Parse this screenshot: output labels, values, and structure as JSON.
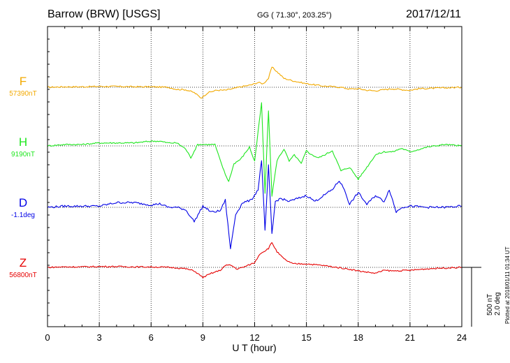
{
  "header": {
    "station": "Barrow (BRW)  [USGS]",
    "coords": "GG ( 71.30°, 203.25°)",
    "date": "2017/12/11"
  },
  "plotted_note": "Plotted at 2018/01/11 01:34 UT",
  "scale": {
    "line1": "500 nT",
    "line2": "2.0 deg"
  },
  "chart_data": {
    "type": "line",
    "xlabel": "U T (hour)",
    "xlim": [
      0,
      24
    ],
    "xticks": [
      0,
      3,
      6,
      9,
      12,
      15,
      18,
      21,
      24
    ],
    "scale_label": "500 nT / 2.0 deg",
    "series": [
      {
        "name": "F",
        "baseline_label": "57390nT",
        "color": "#f2a900",
        "unit": "nT",
        "x": [
          0,
          1,
          2,
          3,
          4,
          5,
          6,
          7,
          7.5,
          8,
          8.5,
          8.9,
          9.3,
          9.8,
          10.3,
          10.8,
          11.2,
          11.8,
          12.2,
          12.5,
          12.8,
          13.0,
          13.3,
          13.7,
          14.2,
          15,
          16,
          17,
          17.5,
          18,
          18.5,
          19,
          19.5,
          20,
          20.5,
          21,
          21.5,
          22,
          23,
          24
        ],
        "values": [
          0,
          4,
          4,
          7,
          7,
          4,
          4,
          0,
          -18,
          -20,
          -45,
          -90,
          -45,
          -25,
          -25,
          -10,
          4,
          20,
          40,
          30,
          75,
          170,
          130,
          75,
          55,
          30,
          10,
          0,
          -15,
          -12,
          -25,
          -30,
          -20,
          -12,
          -20,
          -25,
          -12,
          -10,
          -5,
          0
        ]
      },
      {
        "name": "H",
        "baseline_label": "9190nT",
        "color": "#1ee61e",
        "unit": "nT",
        "x": [
          0,
          1,
          2,
          3,
          4,
          5,
          6,
          6.5,
          7,
          7.5,
          8,
          8.3,
          8.7,
          9.2,
          9.7,
          10.0,
          10.3,
          10.5,
          10.8,
          11.2,
          11.7,
          12.0,
          12.2,
          12.4,
          12.6,
          12.8,
          13.0,
          13.3,
          13.7,
          14.0,
          14.3,
          14.7,
          15.0,
          15.3,
          15.7,
          16.0,
          16.5,
          17.0,
          17.5,
          18.0,
          18.5,
          19.0,
          19.5,
          20.0,
          20.5,
          21.0,
          22,
          23,
          24
        ],
        "values": [
          0,
          12,
          12,
          25,
          25,
          25,
          40,
          40,
          25,
          25,
          -25,
          -100,
          12,
          12,
          12,
          -120,
          -240,
          -300,
          -150,
          -110,
          -10,
          -130,
          120,
          360,
          -400,
          300,
          -420,
          -120,
          -25,
          -130,
          -75,
          -150,
          -40,
          -75,
          -100,
          -80,
          -40,
          -210,
          -180,
          -280,
          -180,
          -75,
          -50,
          -50,
          -20,
          -50,
          -10,
          12,
          0
        ]
      },
      {
        "name": "D",
        "baseline_label": "-1.1deg",
        "color": "#0000e6",
        "unit": "deg",
        "x": [
          0,
          1,
          2,
          3,
          4,
          5,
          6,
          6.5,
          7,
          7.5,
          8,
          8.5,
          9,
          9.5,
          10,
          10.3,
          10.6,
          10.9,
          11.3,
          11.8,
          12.2,
          12.4,
          12.6,
          12.8,
          13.0,
          13.2,
          13.5,
          14.0,
          14.5,
          15.0,
          15.5,
          16.0,
          16.5,
          16.9,
          17.2,
          17.5,
          18.0,
          18.5,
          19.0,
          19.5,
          19.8,
          20.2,
          20.5,
          21,
          22,
          23,
          24
        ],
        "values": [
          0,
          0.04,
          0.04,
          0.04,
          0.16,
          0.16,
          0.08,
          0.12,
          0,
          0,
          -0.08,
          -0.48,
          0.04,
          -0.16,
          -0.12,
          0.24,
          -1.4,
          -0.24,
          0.16,
          0.24,
          0.6,
          1.6,
          -0.8,
          1.4,
          -0.9,
          0.2,
          0.3,
          0.2,
          0.3,
          0.4,
          0.2,
          0.4,
          0.6,
          0.9,
          0.6,
          0.1,
          0.5,
          0.1,
          0.4,
          0.2,
          0.6,
          -0.16,
          0,
          0.04,
          0,
          0,
          0.04
        ]
      },
      {
        "name": "Z",
        "baseline_label": "56800nT",
        "color": "#e60000",
        "unit": "nT",
        "x": [
          0,
          1,
          2,
          3,
          4,
          5,
          6,
          7,
          7.5,
          8,
          8.5,
          9,
          9.5,
          10.0,
          10.3,
          10.6,
          11.0,
          11.5,
          12.0,
          12.3,
          12.6,
          12.8,
          13.0,
          13.3,
          13.7,
          14.2,
          15,
          16,
          17,
          17.5,
          18,
          18.5,
          19,
          19.5,
          20,
          21,
          22,
          23,
          24
        ],
        "values": [
          0,
          4,
          4,
          7,
          7,
          4,
          4,
          0,
          -4,
          -12,
          -30,
          -85,
          -50,
          -25,
          15,
          20,
          -15,
          10,
          40,
          115,
          140,
          160,
          210,
          130,
          70,
          30,
          30,
          15,
          -5,
          -15,
          -30,
          -40,
          -50,
          -25,
          -30,
          -25,
          -12,
          -5,
          0
        ]
      }
    ]
  }
}
